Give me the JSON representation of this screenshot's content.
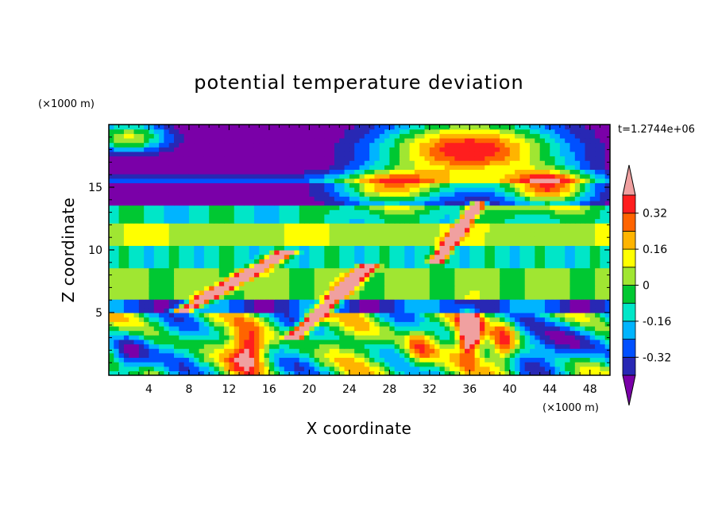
{
  "chart_data": {
    "type": "heatmap",
    "title": "potential temperature deviation",
    "xlabel": "X coordinate",
    "ylabel": "Z coordinate",
    "x_unit": "(×1000 m)",
    "y_unit": "(×1000 m)",
    "time_label": "t=1.2744e+06",
    "xlim": [
      0,
      50
    ],
    "ylim": [
      0,
      20
    ],
    "x_ticks": [
      4,
      8,
      12,
      16,
      20,
      24,
      28,
      32,
      36,
      40,
      44,
      48
    ],
    "y_ticks": [
      5,
      10,
      15
    ],
    "colorbar": {
      "levels": [
        -0.4,
        -0.32,
        -0.24,
        -0.16,
        -0.08,
        0,
        0.08,
        0.16,
        0.24,
        0.32,
        0.4
      ],
      "labels": [
        "0.32",
        "0.16",
        "0",
        "-0.16",
        "-0.32"
      ],
      "label_values": [
        0.32,
        0.16,
        0,
        -0.16,
        -0.32
      ],
      "colors": [
        "#7a00a8",
        "#2828b4",
        "#0050ff",
        "#00b4ff",
        "#00e6c8",
        "#00c832",
        "#a0e632",
        "#ffff00",
        "#ffb400",
        "#ff6400",
        "#ff1e1e",
        "#f0a0a0"
      ]
    }
  }
}
